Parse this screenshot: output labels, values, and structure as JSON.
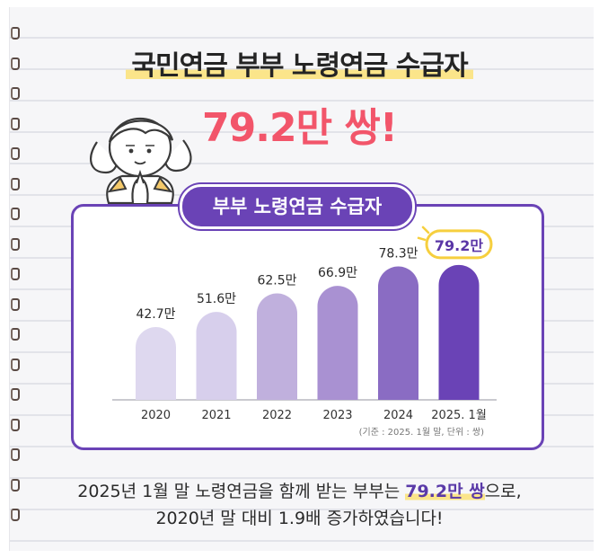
{
  "headline": "국민연금 부부 노령연금 수급자",
  "big_value": "79.2만 쌍!",
  "chart_data": {
    "type": "bar",
    "title": "부부 노령연금 수급자",
    "categories": [
      "2020",
      "2021",
      "2022",
      "2023",
      "2024",
      "2025. 1월"
    ],
    "values": [
      42.7,
      51.6,
      62.5,
      66.9,
      78.3,
      79.2
    ],
    "value_labels": [
      "42.7만",
      "51.6만",
      "62.5만",
      "66.9만",
      "78.3만",
      "79.2만"
    ],
    "highlight_index": 5,
    "note": "(기준 : 2025. 1월 말, 단위 : 쌍)",
    "colors": [
      "#ded8ef",
      "#d7cfec",
      "#c0b0dd",
      "#a991d2",
      "#8a6cc3",
      "#6a43b6"
    ],
    "grid": false,
    "legend": "none"
  },
  "summary": {
    "line1_before": "2025년 1월 말 노령연금을 함께 받는 부부는 ",
    "line1_highlight": "79.2만 쌍",
    "line1_after": "으로,",
    "line2": "2020년 말 대비 1.9배 증가하였습니다!"
  },
  "colors": {
    "accent": "#6a43b6",
    "headline_value": "#f2556a",
    "highlight": "#fbe58a"
  }
}
